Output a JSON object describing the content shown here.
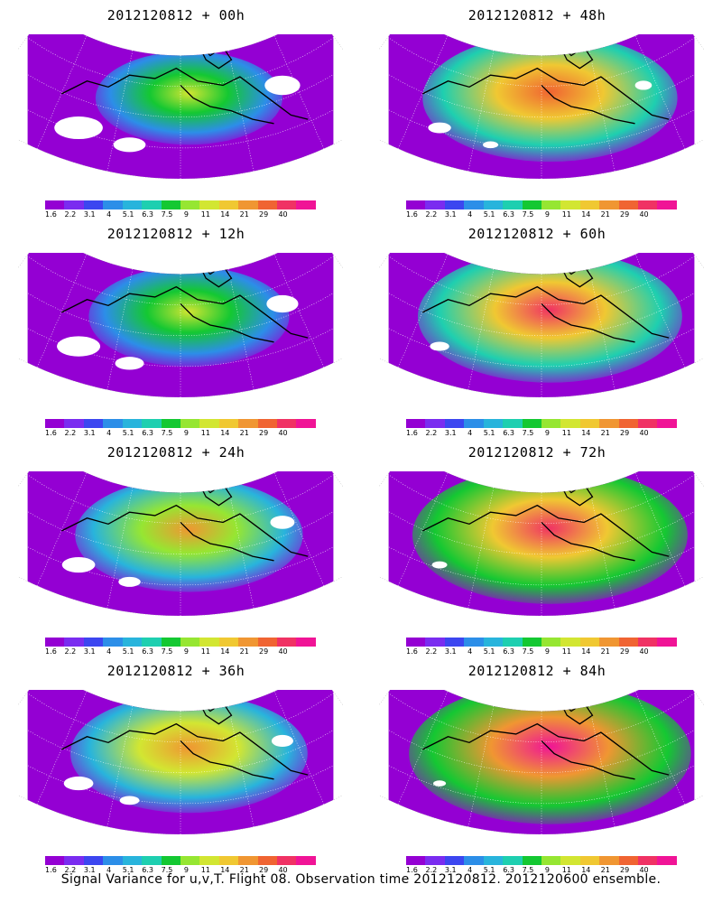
{
  "panels": [
    {
      "title": "2012120812 + 00h",
      "intensity": 0.25
    },
    {
      "title": "2012120812 + 48h",
      "intensity": 0.75
    },
    {
      "title": "2012120812 + 12h",
      "intensity": 0.35
    },
    {
      "title": "2012120812 + 60h",
      "intensity": 0.82
    },
    {
      "title": "2012120812 + 24h",
      "intensity": 0.55
    },
    {
      "title": "2012120812 + 72h",
      "intensity": 0.9
    },
    {
      "title": "2012120812 + 36h",
      "intensity": 0.62
    },
    {
      "title": "2012120812 + 84h",
      "intensity": 0.95
    }
  ],
  "colorbar": {
    "colors": [
      "#9400d3",
      "#7a2cf0",
      "#3c46f0",
      "#2c8ee8",
      "#28b4dc",
      "#1ecfb0",
      "#14c832",
      "#96e632",
      "#d2e632",
      "#f0c832",
      "#f09632",
      "#f06432",
      "#f03264",
      "#f01496"
    ],
    "labels": [
      "1.6",
      "2.2",
      "3.1",
      "4",
      "5.1",
      "6.3",
      "7.5",
      "9",
      "11",
      "14",
      "21",
      "29",
      "40"
    ]
  },
  "caption": "Signal Variance for u,v,T. Flight 08. Observation time 2012120812. 2012120600 ensemble."
}
